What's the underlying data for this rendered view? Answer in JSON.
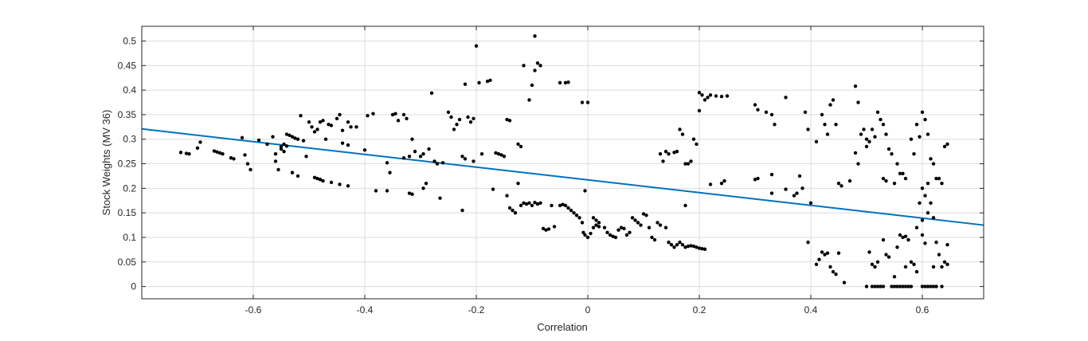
{
  "chart_data": {
    "type": "scatter",
    "title": "",
    "xlabel": "Correlation",
    "ylabel": "Stock Weights (MV 36)",
    "xlim": [
      -0.8,
      0.71
    ],
    "ylim": [
      -0.025,
      0.53
    ],
    "grid": true,
    "x_ticks": [
      -0.6,
      -0.4,
      -0.2,
      0,
      0.2,
      0.4,
      0.6
    ],
    "x_tick_labels": [
      "-0.6",
      "-0.4",
      "-0.2",
      "0",
      "0.2",
      "0.4",
      "0.6"
    ],
    "y_ticks": [
      0,
      0.05,
      0.1,
      0.15,
      0.2,
      0.25,
      0.3,
      0.35,
      0.4,
      0.45,
      0.5
    ],
    "y_tick_labels": [
      "0",
      "0.05",
      "0.1",
      "0.15",
      "0.2",
      "0.25",
      "0.3",
      "0.35",
      "0.4",
      "0.45",
      "0.5"
    ],
    "point_color": "#000000",
    "fit_line": {
      "color": "#0072BD",
      "x": [
        -0.8,
        0.71
      ],
      "y": [
        0.321,
        0.125
      ]
    },
    "points": [
      [
        -0.73,
        0.273
      ],
      [
        -0.72,
        0.271
      ],
      [
        -0.715,
        0.27
      ],
      [
        -0.7,
        0.282
      ],
      [
        -0.695,
        0.294
      ],
      [
        -0.67,
        0.276
      ],
      [
        -0.665,
        0.274
      ],
      [
        -0.66,
        0.272
      ],
      [
        -0.655,
        0.27
      ],
      [
        -0.64,
        0.262
      ],
      [
        -0.635,
        0.26
      ],
      [
        -0.62,
        0.303
      ],
      [
        -0.615,
        0.268
      ],
      [
        -0.61,
        0.25
      ],
      [
        -0.605,
        0.238
      ],
      [
        -0.59,
        0.298
      ],
      [
        -0.575,
        0.29
      ],
      [
        -0.565,
        0.305
      ],
      [
        -0.56,
        0.255
      ],
      [
        -0.555,
        0.238
      ],
      [
        -0.55,
        0.285
      ],
      [
        -0.545,
        0.275
      ],
      [
        -0.54,
        0.31
      ],
      [
        -0.535,
        0.308
      ],
      [
        -0.53,
        0.305
      ],
      [
        -0.525,
        0.302
      ],
      [
        -0.52,
        0.3
      ],
      [
        -0.515,
        0.348
      ],
      [
        -0.51,
        0.297
      ],
      [
        -0.545,
        0.29
      ],
      [
        -0.55,
        0.28
      ],
      [
        -0.54,
        0.286
      ],
      [
        -0.56,
        0.27
      ],
      [
        -0.53,
        0.232
      ],
      [
        -0.52,
        0.225
      ],
      [
        -0.505,
        0.265
      ],
      [
        -0.5,
        0.335
      ],
      [
        -0.495,
        0.325
      ],
      [
        -0.49,
        0.315
      ],
      [
        -0.485,
        0.32
      ],
      [
        -0.48,
        0.335
      ],
      [
        -0.475,
        0.338
      ],
      [
        -0.47,
        0.3
      ],
      [
        -0.465,
        0.33
      ],
      [
        -0.46,
        0.328
      ],
      [
        -0.45,
        0.342
      ],
      [
        -0.445,
        0.35
      ],
      [
        -0.44,
        0.318
      ],
      [
        -0.43,
        0.335
      ],
      [
        -0.425,
        0.325
      ],
      [
        -0.49,
        0.222
      ],
      [
        -0.485,
        0.22
      ],
      [
        -0.48,
        0.218
      ],
      [
        -0.475,
        0.215
      ],
      [
        -0.46,
        0.212
      ],
      [
        -0.445,
        0.208
      ],
      [
        -0.43,
        0.205
      ],
      [
        -0.44,
        0.292
      ],
      [
        -0.43,
        0.288
      ],
      [
        -0.415,
        0.325
      ],
      [
        -0.4,
        0.278
      ],
      [
        -0.395,
        0.348
      ],
      [
        -0.385,
        0.352
      ],
      [
        -0.38,
        0.195
      ],
      [
        -0.36,
        0.195
      ],
      [
        -0.36,
        0.252
      ],
      [
        -0.355,
        0.232
      ],
      [
        -0.35,
        0.35
      ],
      [
        -0.345,
        0.352
      ],
      [
        -0.34,
        0.338
      ],
      [
        -0.33,
        0.35
      ],
      [
        -0.325,
        0.342
      ],
      [
        -0.32,
        0.19
      ],
      [
        -0.315,
        0.188
      ],
      [
        -0.33,
        0.262
      ],
      [
        -0.32,
        0.265
      ],
      [
        -0.315,
        0.3
      ],
      [
        -0.31,
        0.275
      ],
      [
        -0.3,
        0.265
      ],
      [
        -0.295,
        0.27
      ],
      [
        -0.295,
        0.2
      ],
      [
        -0.29,
        0.21
      ],
      [
        -0.285,
        0.28
      ],
      [
        -0.28,
        0.394
      ],
      [
        -0.275,
        0.255
      ],
      [
        -0.27,
        0.25
      ],
      [
        -0.265,
        0.18
      ],
      [
        -0.26,
        0.252
      ],
      [
        -0.25,
        0.355
      ],
      [
        -0.245,
        0.345
      ],
      [
        -0.24,
        0.32
      ],
      [
        -0.235,
        0.33
      ],
      [
        -0.23,
        0.34
      ],
      [
        -0.225,
        0.265
      ],
      [
        -0.22,
        0.26
      ],
      [
        -0.22,
        0.412
      ],
      [
        -0.215,
        0.345
      ],
      [
        -0.21,
        0.335
      ],
      [
        -0.205,
        0.342
      ],
      [
        -0.205,
        0.255
      ],
      [
        -0.225,
        0.155
      ],
      [
        -0.2,
        0.49
      ],
      [
        -0.195,
        0.415
      ],
      [
        -0.19,
        0.27
      ],
      [
        -0.18,
        0.418
      ],
      [
        -0.175,
        0.42
      ],
      [
        -0.17,
        0.198
      ],
      [
        -0.165,
        0.272
      ],
      [
        -0.16,
        0.27
      ],
      [
        -0.155,
        0.268
      ],
      [
        -0.15,
        0.265
      ],
      [
        -0.145,
        0.185
      ],
      [
        -0.14,
        0.16
      ],
      [
        -0.135,
        0.155
      ],
      [
        -0.13,
        0.15
      ],
      [
        -0.125,
        0.21
      ],
      [
        -0.12,
        0.165
      ],
      [
        -0.115,
        0.17
      ],
      [
        -0.11,
        0.168
      ],
      [
        -0.105,
        0.17
      ],
      [
        -0.1,
        0.165
      ],
      [
        -0.095,
        0.171
      ],
      [
        -0.09,
        0.168
      ],
      [
        -0.085,
        0.17
      ],
      [
        -0.125,
        0.29
      ],
      [
        -0.12,
        0.285
      ],
      [
        -0.145,
        0.34
      ],
      [
        -0.14,
        0.338
      ],
      [
        -0.115,
        0.45
      ],
      [
        -0.105,
        0.38
      ],
      [
        -0.1,
        0.41
      ],
      [
        -0.095,
        0.44
      ],
      [
        -0.09,
        0.455
      ],
      [
        -0.085,
        0.45
      ],
      [
        -0.095,
        0.51
      ],
      [
        -0.08,
        0.118
      ],
      [
        -0.075,
        0.115
      ],
      [
        -0.07,
        0.117
      ],
      [
        -0.065,
        0.165
      ],
      [
        -0.06,
        0.122
      ],
      [
        -0.05,
        0.165
      ],
      [
        -0.045,
        0.167
      ],
      [
        -0.04,
        0.165
      ],
      [
        -0.035,
        0.16
      ],
      [
        -0.03,
        0.155
      ],
      [
        -0.025,
        0.15
      ],
      [
        -0.02,
        0.145
      ],
      [
        -0.015,
        0.14
      ],
      [
        -0.01,
        0.13
      ],
      [
        -0.008,
        0.11
      ],
      [
        -0.005,
        0.105
      ],
      [
        0.0,
        0.1
      ],
      [
        0.005,
        0.108
      ],
      [
        0.01,
        0.12
      ],
      [
        0.015,
        0.125
      ],
      [
        0.02,
        0.122
      ],
      [
        -0.05,
        0.415
      ],
      [
        -0.04,
        0.415
      ],
      [
        -0.035,
        0.416
      ],
      [
        -0.01,
        0.375
      ],
      [
        0.0,
        0.375
      ],
      [
        -0.005,
        0.195
      ],
      [
        0.01,
        0.14
      ],
      [
        0.015,
        0.135
      ],
      [
        0.02,
        0.13
      ],
      [
        0.03,
        0.12
      ],
      [
        0.035,
        0.11
      ],
      [
        0.04,
        0.105
      ],
      [
        0.045,
        0.102
      ],
      [
        0.05,
        0.1
      ],
      [
        0.055,
        0.115
      ],
      [
        0.06,
        0.12
      ],
      [
        0.065,
        0.118
      ],
      [
        0.07,
        0.105
      ],
      [
        0.075,
        0.11
      ],
      [
        0.08,
        0.14
      ],
      [
        0.085,
        0.135
      ],
      [
        0.09,
        0.13
      ],
      [
        0.095,
        0.125
      ],
      [
        0.1,
        0.148
      ],
      [
        0.105,
        0.145
      ],
      [
        0.11,
        0.12
      ],
      [
        0.115,
        0.1
      ],
      [
        0.12,
        0.095
      ],
      [
        0.125,
        0.13
      ],
      [
        0.13,
        0.125
      ],
      [
        0.14,
        0.12
      ],
      [
        0.145,
        0.09
      ],
      [
        0.15,
        0.085
      ],
      [
        0.155,
        0.08
      ],
      [
        0.16,
        0.085
      ],
      [
        0.165,
        0.09
      ],
      [
        0.17,
        0.085
      ],
      [
        0.175,
        0.08
      ],
      [
        0.18,
        0.082
      ],
      [
        0.185,
        0.083
      ],
      [
        0.19,
        0.082
      ],
      [
        0.195,
        0.08
      ],
      [
        0.2,
        0.078
      ],
      [
        0.205,
        0.077
      ],
      [
        0.21,
        0.076
      ],
      [
        0.13,
        0.27
      ],
      [
        0.135,
        0.255
      ],
      [
        0.14,
        0.275
      ],
      [
        0.145,
        0.27
      ],
      [
        0.155,
        0.273
      ],
      [
        0.16,
        0.275
      ],
      [
        0.165,
        0.32
      ],
      [
        0.17,
        0.31
      ],
      [
        0.175,
        0.25
      ],
      [
        0.18,
        0.25
      ],
      [
        0.185,
        0.255
      ],
      [
        0.19,
        0.3
      ],
      [
        0.195,
        0.29
      ],
      [
        0.175,
        0.165
      ],
      [
        0.2,
        0.395
      ],
      [
        0.205,
        0.39
      ],
      [
        0.21,
        0.38
      ],
      [
        0.215,
        0.385
      ],
      [
        0.22,
        0.39
      ],
      [
        0.23,
        0.388
      ],
      [
        0.24,
        0.387
      ],
      [
        0.25,
        0.388
      ],
      [
        0.2,
        0.358
      ],
      [
        0.22,
        0.208
      ],
      [
        0.24,
        0.21
      ],
      [
        0.245,
        0.215
      ],
      [
        0.3,
        0.218
      ],
      [
        0.305,
        0.22
      ],
      [
        0.3,
        0.37
      ],
      [
        0.305,
        0.36
      ],
      [
        0.32,
        0.355
      ],
      [
        0.33,
        0.35
      ],
      [
        0.335,
        0.33
      ],
      [
        0.355,
        0.385
      ],
      [
        0.33,
        0.228
      ],
      [
        0.33,
        0.19
      ],
      [
        0.355,
        0.198
      ],
      [
        0.37,
        0.185
      ],
      [
        0.375,
        0.19
      ],
      [
        0.38,
        0.225
      ],
      [
        0.385,
        0.2
      ],
      [
        0.39,
        0.355
      ],
      [
        0.395,
        0.32
      ],
      [
        0.4,
        0.17
      ],
      [
        0.41,
        0.295
      ],
      [
        0.42,
        0.35
      ],
      [
        0.425,
        0.33
      ],
      [
        0.43,
        0.31
      ],
      [
        0.435,
        0.37
      ],
      [
        0.44,
        0.38
      ],
      [
        0.445,
        0.33
      ],
      [
        0.45,
        0.21
      ],
      [
        0.455,
        0.205
      ],
      [
        0.395,
        0.09
      ],
      [
        0.41,
        0.045
      ],
      [
        0.415,
        0.055
      ],
      [
        0.42,
        0.07
      ],
      [
        0.425,
        0.065
      ],
      [
        0.43,
        0.068
      ],
      [
        0.435,
        0.04
      ],
      [
        0.44,
        0.03
      ],
      [
        0.445,
        0.025
      ],
      [
        0.45,
        0.068
      ],
      [
        0.46,
        0.008
      ],
      [
        0.47,
        0.215
      ],
      [
        0.48,
        0.408
      ],
      [
        0.485,
        0.375
      ],
      [
        0.49,
        0.31
      ],
      [
        0.495,
        0.32
      ],
      [
        0.5,
        0.3
      ],
      [
        0.505,
        0.295
      ],
      [
        0.51,
        0.32
      ],
      [
        0.515,
        0.305
      ],
      [
        0.52,
        0.355
      ],
      [
        0.525,
        0.34
      ],
      [
        0.53,
        0.33
      ],
      [
        0.535,
        0.31
      ],
      [
        0.54,
        0.28
      ],
      [
        0.545,
        0.27
      ],
      [
        0.48,
        0.272
      ],
      [
        0.485,
        0.25
      ],
      [
        0.5,
        0.285
      ],
      [
        0.53,
        0.22
      ],
      [
        0.535,
        0.215
      ],
      [
        0.55,
        0.21
      ],
      [
        0.555,
        0.25
      ],
      [
        0.56,
        0.23
      ],
      [
        0.565,
        0.23
      ],
      [
        0.57,
        0.22
      ],
      [
        0.58,
        0.3
      ],
      [
        0.585,
        0.27
      ],
      [
        0.59,
        0.33
      ],
      [
        0.595,
        0.305
      ],
      [
        0.6,
        0.355
      ],
      [
        0.605,
        0.34
      ],
      [
        0.61,
        0.31
      ],
      [
        0.615,
        0.26
      ],
      [
        0.62,
        0.25
      ],
      [
        0.625,
        0.22
      ],
      [
        0.63,
        0.22
      ],
      [
        0.635,
        0.21
      ],
      [
        0.64,
        0.285
      ],
      [
        0.645,
        0.29
      ],
      [
        0.5,
        0.0
      ],
      [
        0.51,
        0.0
      ],
      [
        0.515,
        0.0
      ],
      [
        0.52,
        0.0
      ],
      [
        0.525,
        0.0
      ],
      [
        0.53,
        0.0
      ],
      [
        0.545,
        0.0
      ],
      [
        0.55,
        0.0
      ],
      [
        0.555,
        0.0
      ],
      [
        0.56,
        0.0
      ],
      [
        0.565,
        0.0
      ],
      [
        0.57,
        0.0
      ],
      [
        0.575,
        0.0
      ],
      [
        0.58,
        0.0
      ],
      [
        0.6,
        0.0
      ],
      [
        0.605,
        0.0
      ],
      [
        0.61,
        0.0
      ],
      [
        0.615,
        0.0
      ],
      [
        0.62,
        0.0
      ],
      [
        0.625,
        0.0
      ],
      [
        0.635,
        0.0
      ],
      [
        0.505,
        0.07
      ],
      [
        0.51,
        0.045
      ],
      [
        0.515,
        0.04
      ],
      [
        0.52,
        0.05
      ],
      [
        0.53,
        0.095
      ],
      [
        0.535,
        0.065
      ],
      [
        0.54,
        0.06
      ],
      [
        0.55,
        0.02
      ],
      [
        0.555,
        0.08
      ],
      [
        0.56,
        0.105
      ],
      [
        0.565,
        0.1
      ],
      [
        0.57,
        0.102
      ],
      [
        0.575,
        0.095
      ],
      [
        0.58,
        0.05
      ],
      [
        0.585,
        0.045
      ],
      [
        0.59,
        0.03
      ],
      [
        0.6,
        0.105
      ],
      [
        0.605,
        0.088
      ],
      [
        0.61,
        0.21
      ],
      [
        0.615,
        0.17
      ],
      [
        0.62,
        0.14
      ],
      [
        0.625,
        0.09
      ],
      [
        0.63,
        0.065
      ],
      [
        0.635,
        0.04
      ],
      [
        0.64,
        0.05
      ],
      [
        0.645,
        0.085
      ],
      [
        0.645,
        0.045
      ],
      [
        0.59,
        0.12
      ],
      [
        0.6,
        0.2
      ],
      [
        0.605,
        0.185
      ],
      [
        0.61,
        0.15
      ],
      [
        0.595,
        0.17
      ],
      [
        0.6,
        0.135
      ],
      [
        0.62,
        0.04
      ],
      [
        0.57,
        0.04
      ]
    ]
  }
}
